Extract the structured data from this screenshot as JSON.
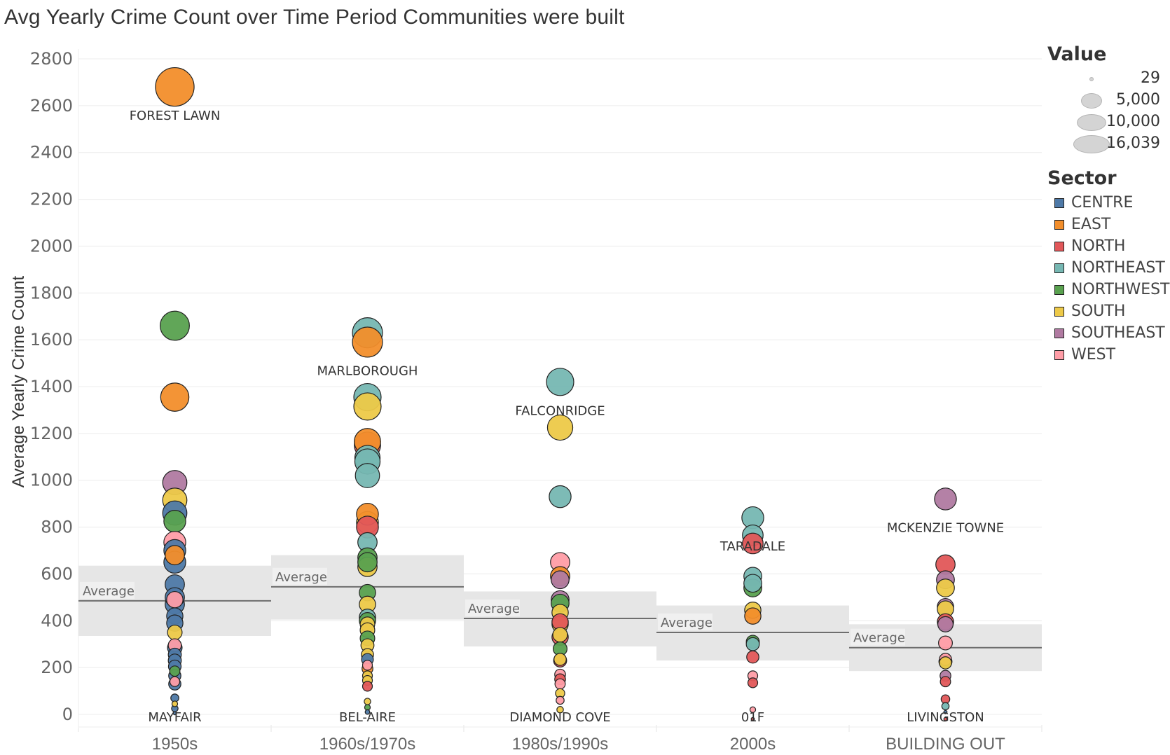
{
  "chart_data": {
    "type": "scatter",
    "title": "Avg Yearly Crime Count over Time Period Communities were built",
    "xlabel": "",
    "ylabel": "Average Yearly Crime Count",
    "ylim": [
      -50,
      2880
    ],
    "yticks": [
      0,
      200,
      400,
      600,
      800,
      1000,
      1200,
      1400,
      1600,
      1800,
      2000,
      2200,
      2400,
      2600,
      2800
    ],
    "grid": true,
    "categories": [
      "1950s",
      "1960s/1970s",
      "1980s/1990s",
      "2000s",
      "BUILDING OUT"
    ],
    "reference_lines": [
      {
        "category": "1950s",
        "label": "Average",
        "value": 485,
        "band": [
          335,
          635
        ]
      },
      {
        "category": "1960s/1970s",
        "label": "Average",
        "value": 545,
        "band": [
          405,
          680
        ]
      },
      {
        "category": "1980s/1990s",
        "label": "Average",
        "value": 410,
        "band": [
          290,
          525
        ]
      },
      {
        "category": "2000s",
        "label": "Average",
        "value": 350,
        "band": [
          230,
          465
        ]
      },
      {
        "category": "BUILDING OUT",
        "label": "Average",
        "value": 285,
        "band": [
          185,
          385
        ]
      }
    ],
    "size_legend": {
      "title": "Value",
      "values": [
        "29",
        "5,000",
        "10,000",
        "16,039"
      ]
    },
    "color_legend": {
      "title": "Sector",
      "items": [
        {
          "name": "CENTRE",
          "color": "#4e79a7"
        },
        {
          "name": "EAST",
          "color": "#f28e2b"
        },
        {
          "name": "NORTH",
          "color": "#e15759"
        },
        {
          "name": "NORTHEAST",
          "color": "#76b7b2"
        },
        {
          "name": "NORTHWEST",
          "color": "#59a14f"
        },
        {
          "name": "SOUTH",
          "color": "#edc948"
        },
        {
          "name": "SOUTHEAST",
          "color": "#b07aa1"
        },
        {
          "name": "WEST",
          "color": "#ff9da7"
        }
      ]
    },
    "labels": [
      {
        "category": "1950s",
        "text": "FOREST LAWN",
        "y": 2680,
        "pos": "below"
      },
      {
        "category": "1950s",
        "text": "MAYFAIR",
        "y": 5,
        "pos": "below"
      },
      {
        "category": "1960s/1970s",
        "text": "MARLBOROUGH",
        "y": 1590,
        "pos": "below"
      },
      {
        "category": "1960s/1970s",
        "text": "BEL-AIRE",
        "y": 5,
        "pos": "below"
      },
      {
        "category": "1980s/1990s",
        "text": "FALCONRIDGE",
        "y": 1420,
        "pos": "below"
      },
      {
        "category": "1980s/1990s",
        "text": "DIAMOND COVE",
        "y": 5,
        "pos": "below"
      },
      {
        "category": "2000s",
        "text": "TARADALE",
        "y": 840,
        "pos": "below"
      },
      {
        "category": "2000s",
        "text": "01F",
        "y": 5,
        "pos": "below"
      },
      {
        "category": "BUILDING OUT",
        "text": "MCKENZIE TOWNE",
        "y": 920,
        "pos": "below"
      },
      {
        "category": "BUILDING OUT",
        "text": "LIVINGSTON",
        "y": 5,
        "pos": "below"
      }
    ],
    "series": [
      {
        "category": "1950s",
        "points": [
          {
            "y": 2680,
            "sector": "EAST",
            "value": 14000
          },
          {
            "y": 1660,
            "sector": "NORTHWEST",
            "value": 8000
          },
          {
            "y": 1355,
            "sector": "EAST",
            "value": 7500
          },
          {
            "y": 990,
            "sector": "SOUTHEAST",
            "value": 5500
          },
          {
            "y": 915,
            "sector": "SOUTH",
            "value": 5500
          },
          {
            "y": 825,
            "sector": "NORTHWEST",
            "value": 4500
          },
          {
            "y": 860,
            "sector": "CENTRE",
            "value": 5500
          },
          {
            "y": 735,
            "sector": "WEST",
            "value": 4500
          },
          {
            "y": 680,
            "sector": "EAST",
            "value": 3500
          },
          {
            "y": 700,
            "sector": "CENTRE",
            "value": 4500
          },
          {
            "y": 650,
            "sector": "CENTRE",
            "value": 4500
          },
          {
            "y": 555,
            "sector": "CENTRE",
            "value": 3500
          },
          {
            "y": 490,
            "sector": "WEST",
            "value": 2500
          },
          {
            "y": 470,
            "sector": "CENTRE",
            "value": 3500
          },
          {
            "y": 500,
            "sector": "CENTRE",
            "value": 3500
          },
          {
            "y": 420,
            "sector": "CENTRE",
            "value": 2500
          },
          {
            "y": 390,
            "sector": "CENTRE",
            "value": 2500
          },
          {
            "y": 350,
            "sector": "SOUTH",
            "value": 2000
          },
          {
            "y": 295,
            "sector": "WEST",
            "value": 1600
          },
          {
            "y": 285,
            "sector": "CENTRE",
            "value": 2000
          },
          {
            "y": 255,
            "sector": "CENTRE",
            "value": 1600
          },
          {
            "y": 230,
            "sector": "CENTRE",
            "value": 1600
          },
          {
            "y": 205,
            "sector": "CENTRE",
            "value": 1500
          },
          {
            "y": 185,
            "sector": "NORTHWEST",
            "value": 1000
          },
          {
            "y": 165,
            "sector": "CENTRE",
            "value": 1400
          },
          {
            "y": 140,
            "sector": "WEST",
            "value": 900
          },
          {
            "y": 130,
            "sector": "CENTRE",
            "value": 1400
          },
          {
            "y": 70,
            "sector": "CENTRE",
            "value": 600
          },
          {
            "y": 45,
            "sector": "SOUTH",
            "value": 300
          },
          {
            "y": 25,
            "sector": "CENTRE",
            "value": 400
          },
          {
            "y": 5,
            "sector": "CENTRE",
            "value": 100
          }
        ]
      },
      {
        "category": "1960s/1970s",
        "points": [
          {
            "y": 1630,
            "sector": "NORTHEAST",
            "value": 8500
          },
          {
            "y": 1590,
            "sector": "EAST",
            "value": 8500
          },
          {
            "y": 1355,
            "sector": "NORTHEAST",
            "value": 7000
          },
          {
            "y": 1315,
            "sector": "SOUTH",
            "value": 7000
          },
          {
            "y": 1150,
            "sector": "NORTH",
            "value": 6500
          },
          {
            "y": 1165,
            "sector": "EAST",
            "value": 6500
          },
          {
            "y": 1095,
            "sector": "NORTHEAST",
            "value": 6000
          },
          {
            "y": 1080,
            "sector": "NORTHEAST",
            "value": 6000
          },
          {
            "y": 1020,
            "sector": "NORTHEAST",
            "value": 5500
          },
          {
            "y": 820,
            "sector": "SOUTH",
            "value": 4500
          },
          {
            "y": 855,
            "sector": "EAST",
            "value": 4500
          },
          {
            "y": 800,
            "sector": "NORTH",
            "value": 4500
          },
          {
            "y": 735,
            "sector": "NORTHEAST",
            "value": 3500
          },
          {
            "y": 670,
            "sector": "NORTHWEST",
            "value": 3500
          },
          {
            "y": 630,
            "sector": "SOUTH",
            "value": 3500
          },
          {
            "y": 650,
            "sector": "NORTHWEST",
            "value": 3500
          },
          {
            "y": 520,
            "sector": "NORTHWEST",
            "value": 2500
          },
          {
            "y": 470,
            "sector": "SOUTH",
            "value": 2500
          },
          {
            "y": 415,
            "sector": "NORTHEAST",
            "value": 2500
          },
          {
            "y": 400,
            "sector": "NORTHWEST",
            "value": 2500
          },
          {
            "y": 385,
            "sector": "SOUTH",
            "value": 2000
          },
          {
            "y": 360,
            "sector": "SOUTH",
            "value": 2000
          },
          {
            "y": 325,
            "sector": "NORTHWEST",
            "value": 2000
          },
          {
            "y": 295,
            "sector": "SOUTH",
            "value": 1600
          },
          {
            "y": 255,
            "sector": "SOUTH",
            "value": 1400
          },
          {
            "y": 235,
            "sector": "CENTRE",
            "value": 1300
          },
          {
            "y": 210,
            "sector": "WEST",
            "value": 900
          },
          {
            "y": 195,
            "sector": "EAST",
            "value": 1100
          },
          {
            "y": 165,
            "sector": "SOUTH",
            "value": 900
          },
          {
            "y": 145,
            "sector": "SOUTH",
            "value": 900
          },
          {
            "y": 120,
            "sector": "NORTH",
            "value": 900
          },
          {
            "y": 55,
            "sector": "SOUTH",
            "value": 400
          },
          {
            "y": 30,
            "sector": "NORTHWEST",
            "value": 300
          },
          {
            "y": 10,
            "sector": "CENTRE",
            "value": 200
          }
        ]
      },
      {
        "category": "1980s/1990s",
        "points": [
          {
            "y": 1420,
            "sector": "NORTHEAST",
            "value": 7000
          },
          {
            "y": 1225,
            "sector": "SOUTH",
            "value": 6000
          },
          {
            "y": 930,
            "sector": "NORTHEAST",
            "value": 4500
          },
          {
            "y": 650,
            "sector": "WEST",
            "value": 3500
          },
          {
            "y": 575,
            "sector": "SOUTHEAST",
            "value": 3000
          },
          {
            "y": 590,
            "sector": "EAST",
            "value": 3500
          },
          {
            "y": 490,
            "sector": "SOUTHEAST",
            "value": 3000
          },
          {
            "y": 475,
            "sector": "NORTHWEST",
            "value": 3000
          },
          {
            "y": 435,
            "sector": "SOUTH",
            "value": 2500
          },
          {
            "y": 385,
            "sector": "SOUTH",
            "value": 2500
          },
          {
            "y": 395,
            "sector": "NORTH",
            "value": 2500
          },
          {
            "y": 340,
            "sector": "SOUTH",
            "value": 2000
          },
          {
            "y": 330,
            "sector": "NORTH",
            "value": 2500
          },
          {
            "y": 280,
            "sector": "NORTHWEST",
            "value": 1800
          },
          {
            "y": 235,
            "sector": "SOUTH",
            "value": 1400
          },
          {
            "y": 230,
            "sector": "NORTH",
            "value": 1600
          },
          {
            "y": 170,
            "sector": "WEST",
            "value": 1100
          },
          {
            "y": 150,
            "sector": "NORTH",
            "value": 1100
          },
          {
            "y": 130,
            "sector": "WEST",
            "value": 1000
          },
          {
            "y": 90,
            "sector": "SOUTH",
            "value": 800
          },
          {
            "y": 60,
            "sector": "WEST",
            "value": 600
          },
          {
            "y": 20,
            "sector": "SOUTH",
            "value": 400
          }
        ]
      },
      {
        "category": "2000s",
        "points": [
          {
            "y": 840,
            "sector": "NORTHEAST",
            "value": 4500
          },
          {
            "y": 765,
            "sector": "NORTHEAST",
            "value": 4000
          },
          {
            "y": 730,
            "sector": "NORTH",
            "value": 4000
          },
          {
            "y": 590,
            "sector": "NORTHEAST",
            "value": 3000
          },
          {
            "y": 540,
            "sector": "NORTHWEST",
            "value": 3000
          },
          {
            "y": 560,
            "sector": "NORTHEAST",
            "value": 3000
          },
          {
            "y": 445,
            "sector": "SOUTH",
            "value": 2500
          },
          {
            "y": 420,
            "sector": "EAST",
            "value": 2500
          },
          {
            "y": 310,
            "sector": "NORTHWEST",
            "value": 1600
          },
          {
            "y": 300,
            "sector": "NORTHEAST",
            "value": 1600
          },
          {
            "y": 245,
            "sector": "NORTH",
            "value": 1400
          },
          {
            "y": 165,
            "sector": "WEST",
            "value": 900
          },
          {
            "y": 135,
            "sector": "NORTH",
            "value": 900
          },
          {
            "y": 20,
            "sector": "WEST",
            "value": 300
          },
          {
            "y": -20,
            "sector": "NORTH",
            "value": 100
          }
        ]
      },
      {
        "category": "BUILDING OUT",
        "points": [
          {
            "y": 920,
            "sector": "SOUTHEAST",
            "value": 4500
          },
          {
            "y": 640,
            "sector": "NORTH",
            "value": 3500
          },
          {
            "y": 575,
            "sector": "SOUTHEAST",
            "value": 3000
          },
          {
            "y": 540,
            "sector": "SOUTH",
            "value": 3000
          },
          {
            "y": 460,
            "sector": "SOUTHEAST",
            "value": 2500
          },
          {
            "y": 450,
            "sector": "SOUTH",
            "value": 2500
          },
          {
            "y": 395,
            "sector": "NORTH",
            "value": 2500
          },
          {
            "y": 385,
            "sector": "SOUTHEAST",
            "value": 2200
          },
          {
            "y": 305,
            "sector": "WEST",
            "value": 1800
          },
          {
            "y": 235,
            "sector": "WEST",
            "value": 1400
          },
          {
            "y": 220,
            "sector": "SOUTH",
            "value": 1400
          },
          {
            "y": 225,
            "sector": "NORTHWEST",
            "value": 1600
          },
          {
            "y": 165,
            "sector": "SOUTHEAST",
            "value": 1100
          },
          {
            "y": 140,
            "sector": "NORTH",
            "value": 1000
          },
          {
            "y": 65,
            "sector": "NORTH",
            "value": 700
          },
          {
            "y": 35,
            "sector": "NORTHEAST",
            "value": 500
          },
          {
            "y": 10,
            "sector": "CENTRE",
            "value": 100
          },
          {
            "y": -20,
            "sector": "NORTH",
            "value": 100
          }
        ]
      }
    ]
  }
}
